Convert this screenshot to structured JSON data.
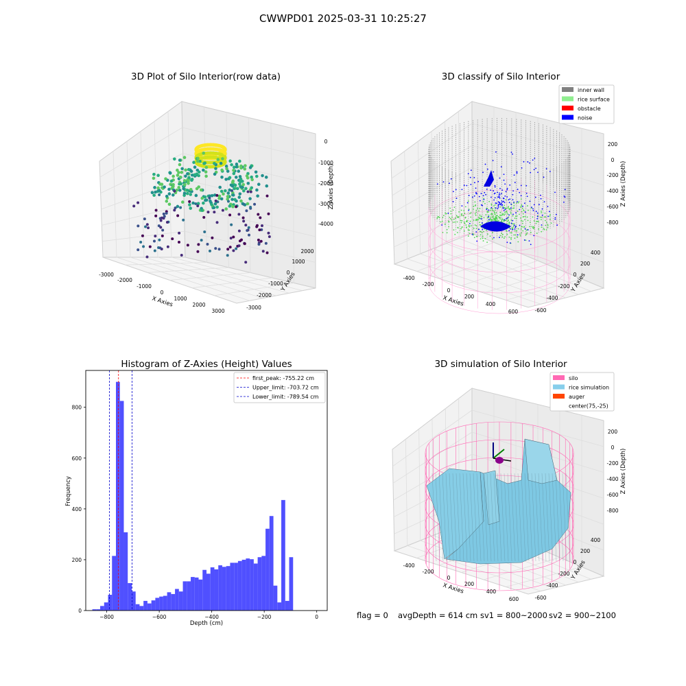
{
  "suptitle": "CWWPD01 2025-03-31 10:25:27",
  "footer": {
    "flag": "flag = 0",
    "avg": "avgDepth = 614 cm",
    "sv1": "sv1 = 800~2000",
    "sv2": "sv2 = 900~2100"
  },
  "chart_data": [
    {
      "type": "scatter",
      "subtype": "3d",
      "title": "3D Plot of Silo Interior(row data)",
      "xlabel": "X Axies",
      "ylabel": "Y Axies",
      "zlabel": "Z Axies (Depth)",
      "x_ticks": [
        "-3000",
        "-2000",
        "-1000",
        "0",
        "1000",
        "2000",
        "3000"
      ],
      "y_ticks": [
        "2000",
        "1000",
        "0",
        "-1000",
        "-2000",
        "-3000"
      ],
      "z_ticks": [
        "0",
        "-1000",
        "-2000",
        "-3000",
        "-4000"
      ],
      "colormap": "viridis",
      "grid": true
    },
    {
      "type": "scatter",
      "subtype": "3d",
      "title": "3D classify of Silo Interior",
      "xlabel": "X Axies",
      "ylabel": "Y Axies",
      "zlabel": "Z Axies (Depth)",
      "x_ticks": [
        "-400",
        "-200",
        "0",
        "200",
        "400",
        "600"
      ],
      "y_ticks": [
        "400",
        "200",
        "0",
        "-200",
        "-400",
        "-600"
      ],
      "z_ticks": [
        "200",
        "0",
        "-200",
        "-400",
        "-600",
        "-800"
      ],
      "legend_position": "top-right",
      "legend": [
        {
          "label": "inner wall",
          "color": "#808080"
        },
        {
          "label": "rice surface",
          "color": "#90ee90"
        },
        {
          "label": "obstacle",
          "color": "#ff0000"
        },
        {
          "label": "noise",
          "color": "#0000ff"
        }
      ],
      "grid": true
    },
    {
      "type": "bar",
      "subtype": "histogram",
      "title": "Histogram of Z-Axies (Height) Values",
      "xlabel": "Depth (cm)",
      "ylabel": "Frequency",
      "xlim": [
        -880,
        40
      ],
      "ylim": [
        0,
        945
      ],
      "x_ticks": [
        -800,
        -600,
        -400,
        -200,
        0
      ],
      "y_ticks": [
        0,
        200,
        400,
        600,
        800
      ],
      "bar_color": "#4d4dff",
      "bin_width": 15,
      "bin_start": -855,
      "values": [
        5,
        5,
        18,
        32,
        62,
        215,
        900,
        825,
        308,
        108,
        75,
        25,
        18,
        38,
        28,
        40,
        50,
        55,
        58,
        72,
        65,
        85,
        75,
        115,
        115,
        132,
        130,
        122,
        160,
        145,
        170,
        162,
        178,
        172,
        175,
        188,
        188,
        195,
        200,
        205,
        202,
        185,
        210,
        215,
        322,
        372,
        98,
        32,
        435,
        38,
        210
      ],
      "lines": [
        {
          "label": "first_peak: -755.22 cm",
          "x": -755.22,
          "color": "#ff0000"
        },
        {
          "label": "Upper_limit: -703.72 cm",
          "x": -703.72,
          "color": "#0000cc"
        },
        {
          "label": "Lower_limit: -789.54 cm",
          "x": -789.54,
          "color": "#0000cc"
        }
      ],
      "legend_position": "top-right"
    },
    {
      "type": "surface",
      "subtype": "3d",
      "title": "3D simulation of Silo Interior",
      "xlabel": "X Axies",
      "ylabel": "Y Axies",
      "zlabel": "Z Axies (Depth)",
      "x_ticks": [
        "-400",
        "-200",
        "0",
        "200",
        "400",
        "600"
      ],
      "y_ticks": [
        "400",
        "200",
        "0",
        "-200",
        "-400",
        "-600"
      ],
      "z_ticks": [
        "200",
        "0",
        "-200",
        "-400",
        "-600",
        "-800"
      ],
      "legend_position": "top-right",
      "legend": [
        {
          "label": "silo",
          "color": "#ff69b4"
        },
        {
          "label": "rice simulation",
          "color": "#87ceeb"
        },
        {
          "label": "auger",
          "color": "#ff4500"
        },
        {
          "label": "center(75,-25)",
          "color": "#ffffff"
        }
      ],
      "grid": true
    }
  ]
}
